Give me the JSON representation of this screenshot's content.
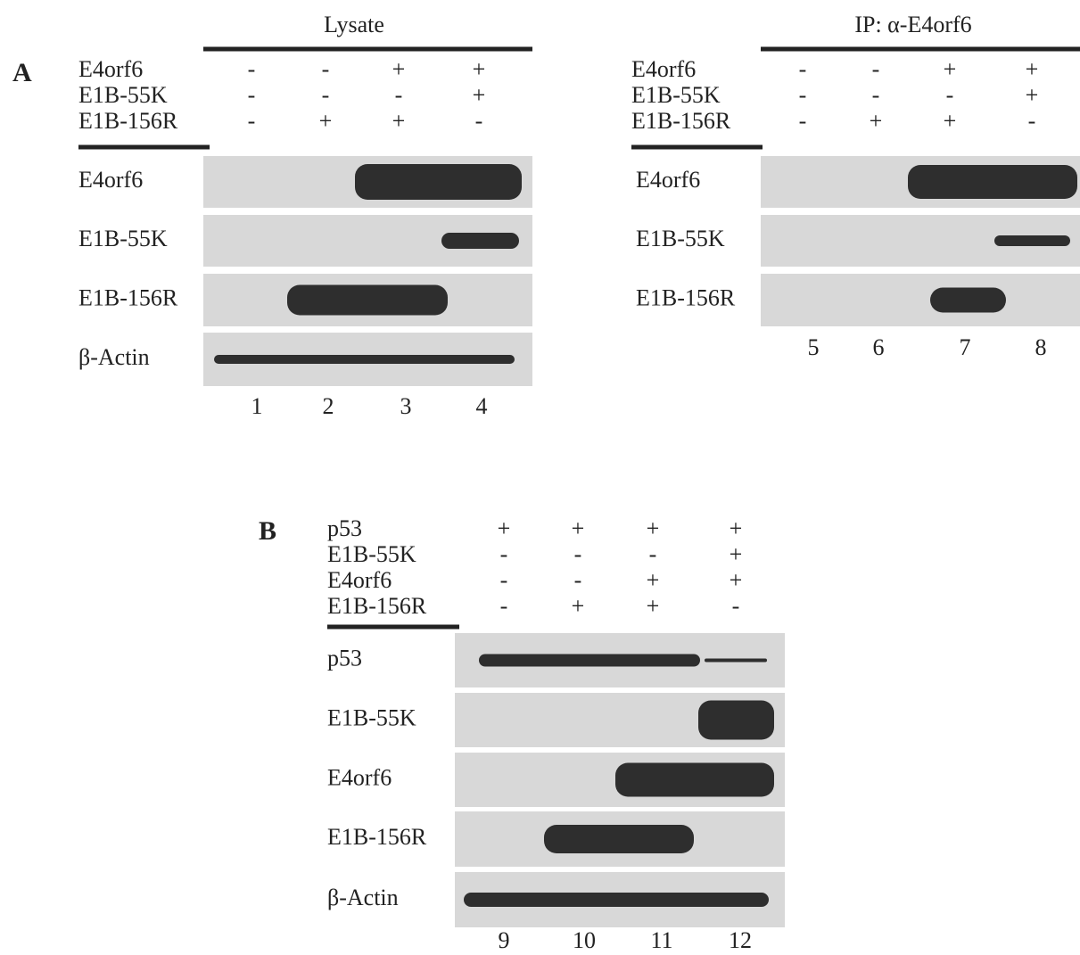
{
  "panel_a": {
    "letter": "A",
    "lysate": {
      "title": "Lysate",
      "conditions": [
        {
          "label": "E4orf6",
          "signs": [
            "-",
            "-",
            "+",
            "+"
          ]
        },
        {
          "label": "E1B-55K",
          "signs": [
            "-",
            "-",
            "-",
            "+"
          ]
        },
        {
          "label": "E1B-156R",
          "signs": [
            "-",
            "+",
            "+",
            "-"
          ]
        }
      ],
      "blots": [
        "E4orf6",
        "E1B-55K",
        "E1B-156R",
        "β-Actin"
      ],
      "lanes": [
        "1",
        "2",
        "3",
        "4"
      ]
    },
    "ip": {
      "title": "IP: α-E4orf6",
      "conditions": [
        {
          "label": "E4orf6",
          "signs": [
            "-",
            "-",
            "+",
            "+"
          ]
        },
        {
          "label": "E1B-55K",
          "signs": [
            "-",
            "-",
            "-",
            "+"
          ]
        },
        {
          "label": "E1B-156R",
          "signs": [
            "-",
            "+",
            "+",
            "-"
          ]
        }
      ],
      "blots": [
        "E4orf6",
        "E1B-55K",
        "E1B-156R"
      ],
      "lanes": [
        "5",
        "6",
        "7",
        "8"
      ]
    }
  },
  "panel_b": {
    "letter": "B",
    "conditions": [
      {
        "label": "p53",
        "signs": [
          "+",
          "+",
          "+",
          "+"
        ]
      },
      {
        "label": "E1B-55K",
        "signs": [
          "-",
          "-",
          "-",
          "+"
        ]
      },
      {
        "label": "E4orf6",
        "signs": [
          "-",
          "-",
          "+",
          "+"
        ]
      },
      {
        "label": "E1B-156R",
        "signs": [
          "-",
          "+",
          "+",
          "-"
        ]
      }
    ],
    "blots": [
      "p53",
      "E1B-55K",
      "E4orf6",
      "E1B-156R",
      "β-Actin"
    ],
    "lanes": [
      "9",
      "10",
      "11",
      "12"
    ]
  }
}
